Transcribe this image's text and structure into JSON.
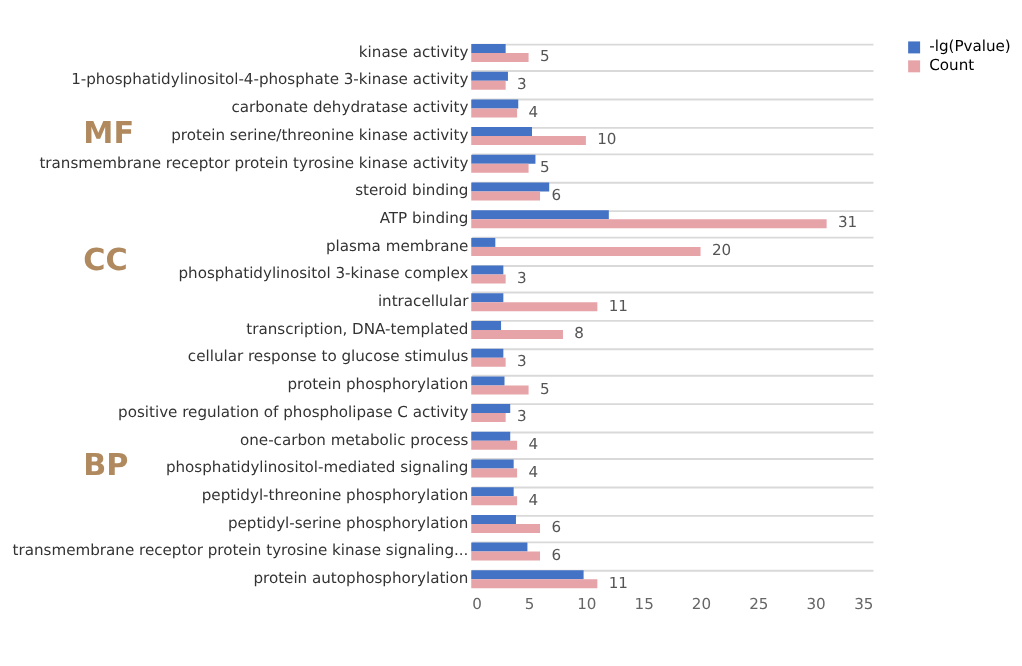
{
  "chart_data": {
    "type": "bar",
    "orientation": "horizontal",
    "categories": [
      "kinase activity",
      "1-phosphatidylinositol-4-phosphate 3-kinase activity",
      "carbonate dehydratase activity",
      "protein serine/threonine kinase activity",
      "transmembrane receptor protein tyrosine kinase activity",
      "steroid binding",
      "ATP binding",
      "plasma membrane",
      "phosphatidylinositol 3-kinase complex",
      "intracellular",
      "transcription, DNA-templated",
      "cellular response to glucose stimulus",
      "protein phosphorylation",
      "positive regulation of phospholipase C activity",
      "one-carbon metabolic process",
      "phosphatidylinositol-mediated signaling",
      "peptidyl-threonine phosphorylation",
      "peptidyl-serine phosphorylation",
      "transmembrane receptor protein tyrosine kinase signaling...",
      "protein autophosphorylation"
    ],
    "series": [
      {
        "name": "-lg(Pvalue)",
        "color": "#4472c4",
        "values": [
          3.0,
          3.2,
          4.1,
          5.3,
          5.6,
          6.8,
          12.0,
          2.1,
          2.8,
          2.8,
          2.6,
          2.8,
          2.9,
          3.4,
          3.4,
          3.7,
          3.7,
          3.9,
          4.9,
          9.8
        ]
      },
      {
        "name": "Count",
        "color": "#e6a3a8",
        "values": [
          5,
          3,
          4,
          10,
          5,
          6,
          31,
          20,
          3,
          11,
          8,
          3,
          5,
          3,
          4,
          4,
          4,
          6,
          6,
          11
        ],
        "value_labels": [
          "5",
          "3",
          "4",
          "10",
          "5",
          "6",
          "31",
          "20",
          "3",
          "11",
          "8",
          "3",
          "5",
          "3",
          "4",
          "4",
          "4",
          "6",
          "6",
          "11"
        ]
      }
    ],
    "xlim": [
      0,
      35
    ],
    "xticks": [
      0,
      5,
      10,
      15,
      20,
      25,
      30,
      35
    ],
    "grid": "y",
    "legend": "right",
    "annotations": [
      "MF",
      "CC",
      "BP"
    ]
  }
}
